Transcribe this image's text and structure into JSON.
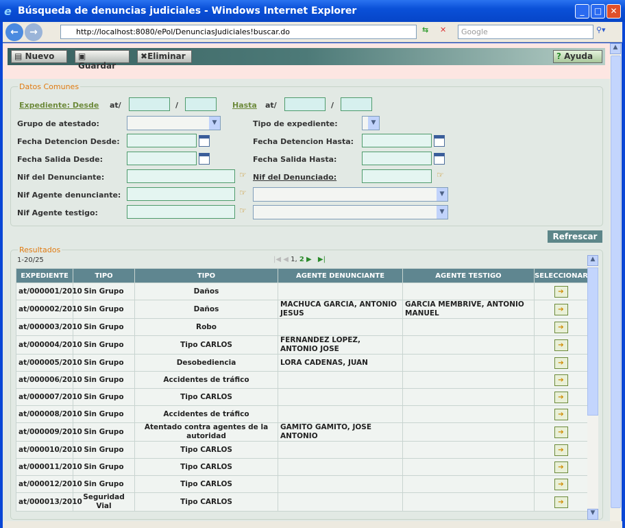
{
  "window": {
    "title": "Búsqueda de denuncias judiciales - Windows Internet Explorer",
    "url": "http://localhost:8080/ePol/DenunciasJudiciales!buscar.do",
    "search_placeholder": "Google"
  },
  "toolbar": {
    "nuevo": "Nuevo",
    "guardar": "Guardar",
    "eliminar": "Eliminar",
    "ayuda": "Ayuda"
  },
  "form": {
    "legend": "Datos Comunes",
    "exp_desde": "Expediente: Desde",
    "at1": "at/",
    "slash": "/",
    "hasta": "Hasta",
    "at2": "at/",
    "grupo": "Grupo de atestado:",
    "tipo_exp": "Tipo de expediente:",
    "fdet_desde": "Fecha Detencion Desde:",
    "fdet_hasta": "Fecha Detencion Hasta:",
    "fsal_desde": "Fecha Salida Desde:",
    "fsal_hasta": "Fecha Salida Hasta:",
    "nif_denunciante": "Nif del Denunciante:",
    "nif_denunciado": "Nif del Denunciado:",
    "nif_agente_den": "Nif Agente denunciante:",
    "nif_agente_test": "Nif Agente testigo:"
  },
  "refrescar": "Refrescar",
  "results": {
    "legend": "Resultados",
    "range": "1-20/25",
    "pages": "1,",
    "page2": "2",
    "columns": [
      "EXPEDIENTE",
      "TIPO",
      "TIPO",
      "AGENTE DENUNCIANTE",
      "AGENTE TESTIGO",
      "SELECCIONAR"
    ],
    "rows": [
      [
        "at/000001/2010",
        "Sin Grupo",
        "Daños",
        "",
        ""
      ],
      [
        "at/000002/2010",
        "Sin Grupo",
        "Daños",
        "MACHUCA GARCIA, ANTONIO JESUS",
        "GARCIA MEMBRIVE, ANTONIO MANUEL"
      ],
      [
        "at/000003/2010",
        "Sin Grupo",
        "Robo",
        "",
        ""
      ],
      [
        "at/000004/2010",
        "Sin Grupo",
        "Tipo CARLOS",
        "FERNANDEZ LOPEZ, ANTONIO JOSE",
        ""
      ],
      [
        "at/000005/2010",
        "Sin Grupo",
        "Desobediencia",
        "LORA CADENAS, JUAN",
        ""
      ],
      [
        "at/000006/2010",
        "Sin Grupo",
        "Accidentes de tráfico",
        "",
        ""
      ],
      [
        "at/000007/2010",
        "Sin Grupo",
        "Tipo CARLOS",
        "",
        ""
      ],
      [
        "at/000008/2010",
        "Sin Grupo",
        "Accidentes de tráfico",
        "",
        ""
      ],
      [
        "at/000009/2010",
        "Sin Grupo",
        "Atentado contra agentes de la autoridad",
        "GAMITO GAMITO, JOSE ANTONIO",
        ""
      ],
      [
        "at/000010/2010",
        "Sin Grupo",
        "Tipo CARLOS",
        "",
        ""
      ],
      [
        "at/000011/2010",
        "Sin Grupo",
        "Tipo CARLOS",
        "",
        ""
      ],
      [
        "at/000012/2010",
        "Sin Grupo",
        "Tipo CARLOS",
        "",
        ""
      ],
      [
        "at/000013/2010",
        "Seguridad Vial",
        "Tipo CARLOS",
        "",
        ""
      ]
    ]
  }
}
